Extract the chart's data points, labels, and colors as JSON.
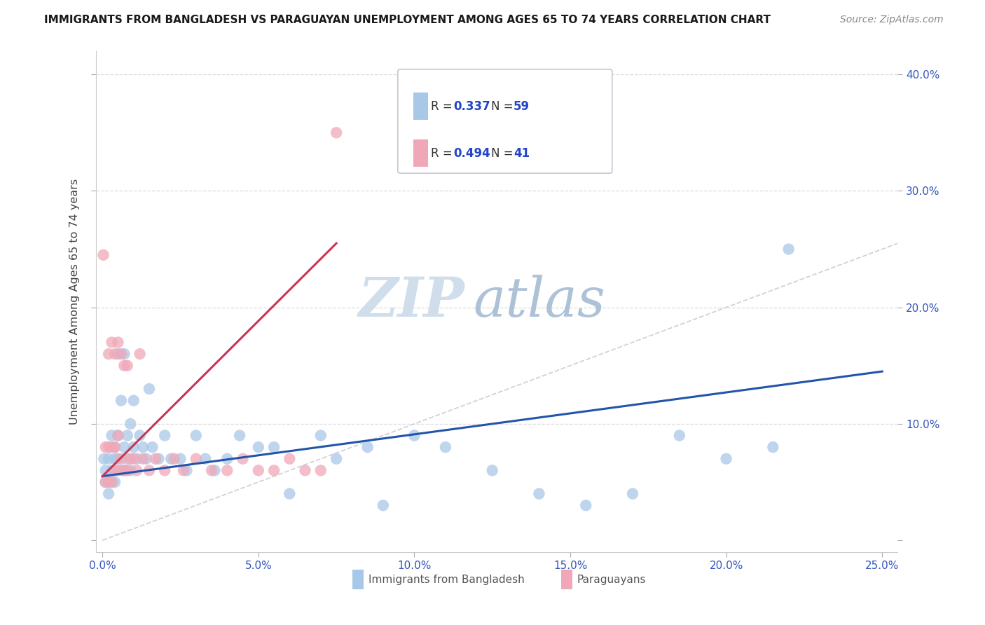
{
  "title": "IMMIGRANTS FROM BANGLADESH VS PARAGUAYAN UNEMPLOYMENT AMONG AGES 65 TO 74 YEARS CORRELATION CHART",
  "source": "Source: ZipAtlas.com",
  "ylabel": "Unemployment Among Ages 65 to 74 years",
  "xlim": [
    -0.002,
    0.255
  ],
  "ylim": [
    -0.01,
    0.42
  ],
  "blue_color": "#a8c8e8",
  "pink_color": "#f0a8b8",
  "blue_line_color": "#2255aa",
  "pink_line_color": "#cc3355",
  "diag_color": "#cccccc",
  "grid_color": "#dddddd",
  "legend_R1": "0.337",
  "legend_N1": "59",
  "legend_R2": "0.494",
  "legend_N2": "41",
  "watermark_zip": "ZIP",
  "watermark_atlas": "atlas",
  "blue_x": [
    0.0005,
    0.001,
    0.001,
    0.002,
    0.002,
    0.002,
    0.003,
    0.003,
    0.003,
    0.004,
    0.004,
    0.004,
    0.005,
    0.005,
    0.005,
    0.006,
    0.006,
    0.007,
    0.007,
    0.007,
    0.008,
    0.008,
    0.009,
    0.009,
    0.01,
    0.01,
    0.011,
    0.012,
    0.013,
    0.014,
    0.015,
    0.016,
    0.018,
    0.02,
    0.022,
    0.025,
    0.027,
    0.03,
    0.033,
    0.036,
    0.04,
    0.044,
    0.05,
    0.055,
    0.06,
    0.07,
    0.075,
    0.085,
    0.09,
    0.1,
    0.11,
    0.125,
    0.14,
    0.155,
    0.17,
    0.185,
    0.2,
    0.215,
    0.22
  ],
  "blue_y": [
    0.07,
    0.06,
    0.05,
    0.07,
    0.05,
    0.04,
    0.06,
    0.05,
    0.09,
    0.07,
    0.08,
    0.05,
    0.16,
    0.09,
    0.07,
    0.06,
    0.12,
    0.16,
    0.08,
    0.06,
    0.09,
    0.07,
    0.1,
    0.06,
    0.12,
    0.08,
    0.07,
    0.09,
    0.08,
    0.07,
    0.13,
    0.08,
    0.07,
    0.09,
    0.07,
    0.07,
    0.06,
    0.09,
    0.07,
    0.06,
    0.07,
    0.09,
    0.08,
    0.08,
    0.04,
    0.09,
    0.07,
    0.08,
    0.03,
    0.09,
    0.08,
    0.06,
    0.04,
    0.03,
    0.04,
    0.09,
    0.07,
    0.08,
    0.25
  ],
  "pink_x": [
    0.0003,
    0.001,
    0.001,
    0.002,
    0.002,
    0.002,
    0.003,
    0.003,
    0.003,
    0.004,
    0.004,
    0.004,
    0.005,
    0.005,
    0.005,
    0.006,
    0.006,
    0.007,
    0.007,
    0.008,
    0.008,
    0.009,
    0.01,
    0.011,
    0.012,
    0.013,
    0.015,
    0.017,
    0.02,
    0.023,
    0.026,
    0.03,
    0.035,
    0.04,
    0.045,
    0.05,
    0.055,
    0.06,
    0.065,
    0.07,
    0.075
  ],
  "pink_y": [
    0.245,
    0.08,
    0.05,
    0.16,
    0.08,
    0.05,
    0.17,
    0.08,
    0.05,
    0.16,
    0.08,
    0.06,
    0.17,
    0.09,
    0.06,
    0.16,
    0.07,
    0.15,
    0.06,
    0.15,
    0.06,
    0.07,
    0.07,
    0.06,
    0.16,
    0.07,
    0.06,
    0.07,
    0.06,
    0.07,
    0.06,
    0.07,
    0.06,
    0.06,
    0.07,
    0.06,
    0.06,
    0.07,
    0.06,
    0.06,
    0.35
  ],
  "blue_trendline": [
    0.0,
    0.25,
    0.055,
    0.145
  ],
  "pink_trendline": [
    0.0,
    0.075,
    0.055,
    0.255
  ]
}
